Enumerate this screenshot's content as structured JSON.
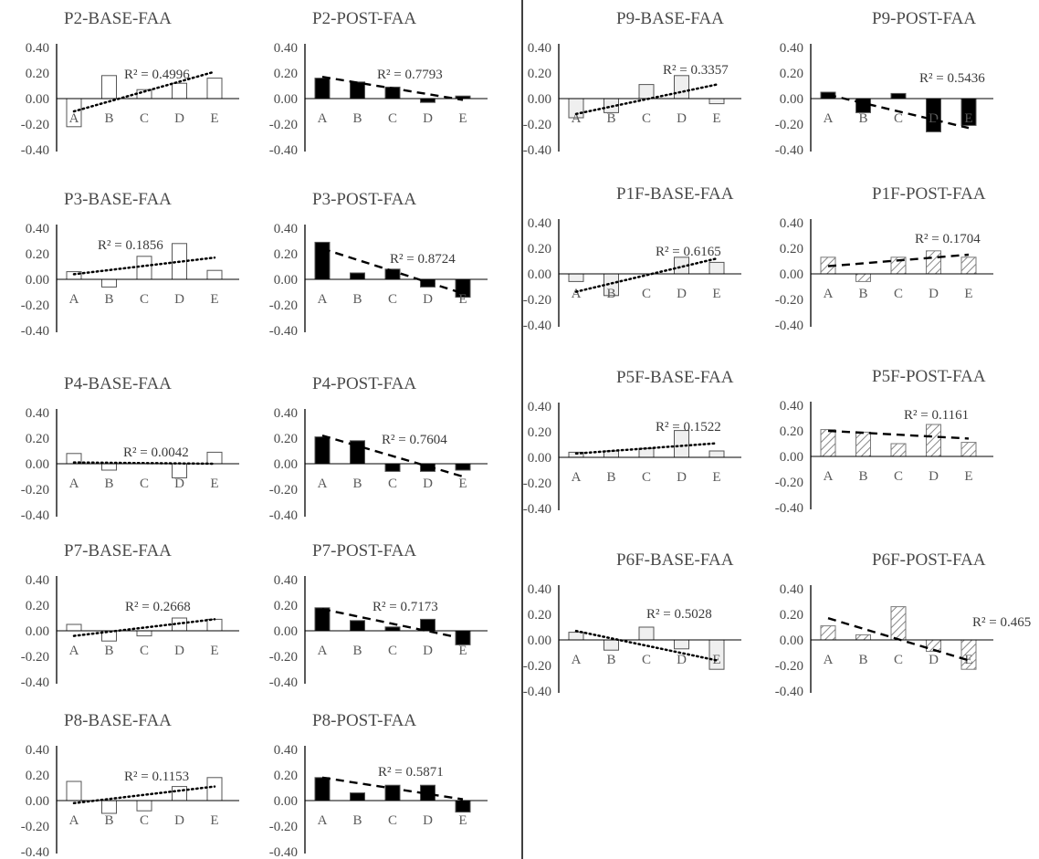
{
  "colors": {
    "axis": "#000000",
    "white_fill": "#ffffff",
    "light_fill": "#efefef",
    "dark_fill": "#000000",
    "hatch_line": "#888888",
    "text": "#4a4a4a",
    "divider": "#000000"
  },
  "chart_data": [
    {
      "type": "bar",
      "title": "P2-BASE-FAA",
      "categories": [
        "A",
        "B",
        "C",
        "D",
        "E"
      ],
      "values": [
        -0.22,
        0.18,
        0.07,
        0.12,
        0.16
      ],
      "ylim": [
        -0.4,
        0.4
      ],
      "yticks": [
        "0.40",
        "0.20",
        "0.00",
        "-0.20",
        "-0.40"
      ],
      "fill": "white",
      "trendline": "dotted",
      "trend": [
        -0.1,
        0.21
      ],
      "r2_label": "R² = 0.4996"
    },
    {
      "type": "bar",
      "title": "P2-POST-FAA",
      "categories": [
        "A",
        "B",
        "C",
        "D",
        "E"
      ],
      "values": [
        0.16,
        0.13,
        0.09,
        -0.03,
        0.02
      ],
      "ylim": [
        -0.4,
        0.4
      ],
      "yticks": [
        "0.40",
        "0.20",
        "0.00",
        "-0.20",
        "-0.40"
      ],
      "fill": "black",
      "trendline": "dashed",
      "trend": [
        0.17,
        -0.01
      ],
      "r2_label": "R² = 0.7793"
    },
    {
      "type": "bar",
      "title": "P3-BASE-FAA",
      "categories": [
        "A",
        "B",
        "C",
        "D",
        "E"
      ],
      "values": [
        0.06,
        -0.06,
        0.18,
        0.28,
        0.07
      ],
      "ylim": [
        -0.4,
        0.4
      ],
      "yticks": [
        "0.40",
        "0.20",
        "0.00",
        "-0.20",
        "-0.40"
      ],
      "fill": "white",
      "trendline": "dotted",
      "trend": [
        0.04,
        0.17
      ],
      "r2_label": "R² = 0.1856"
    },
    {
      "type": "bar",
      "title": "P3-POST-FAA",
      "categories": [
        "A",
        "B",
        "C",
        "D",
        "E"
      ],
      "values": [
        0.29,
        0.05,
        0.08,
        -0.06,
        -0.14
      ],
      "ylim": [
        -0.4,
        0.4
      ],
      "yticks": [
        "0.40",
        "0.20",
        "0.00",
        "-0.20",
        "-0.40"
      ],
      "fill": "black",
      "trendline": "dashed",
      "trend": [
        0.24,
        -0.11
      ],
      "r2_label": "R² = 0.8724"
    },
    {
      "type": "bar",
      "title": "P4-BASE-FAA",
      "categories": [
        "A",
        "B",
        "C",
        "D",
        "E"
      ],
      "values": [
        0.08,
        -0.05,
        0.0,
        -0.11,
        0.09
      ],
      "ylim": [
        -0.4,
        0.4
      ],
      "yticks": [
        "0.40",
        "0.20",
        "0.00",
        "-0.20",
        "-0.40"
      ],
      "fill": "white",
      "trendline": "dotted",
      "trend": [
        0.01,
        0.0
      ],
      "r2_label": "R² = 0.0042"
    },
    {
      "type": "bar",
      "title": "P4-POST-FAA",
      "categories": [
        "A",
        "B",
        "C",
        "D",
        "E"
      ],
      "values": [
        0.21,
        0.18,
        -0.06,
        -0.06,
        -0.05
      ],
      "ylim": [
        -0.4,
        0.4
      ],
      "yticks": [
        "0.40",
        "0.20",
        "0.00",
        "-0.20",
        "-0.40"
      ],
      "fill": "black",
      "trendline": "dashed",
      "trend": [
        0.22,
        -0.1
      ],
      "r2_label": "R² = 0.7604"
    },
    {
      "type": "bar",
      "title": "P7-BASE-FAA",
      "categories": [
        "A",
        "B",
        "C",
        "D",
        "E"
      ],
      "values": [
        0.05,
        -0.08,
        -0.04,
        0.1,
        0.09
      ],
      "ylim": [
        -0.4,
        0.4
      ],
      "yticks": [
        "0.40",
        "0.20",
        "0.00",
        "-0.20",
        "-0.40"
      ],
      "fill": "white",
      "trendline": "dotted",
      "trend": [
        -0.04,
        0.09
      ],
      "r2_label": "R² = 0.2668"
    },
    {
      "type": "bar",
      "title": "P7-POST-FAA",
      "categories": [
        "A",
        "B",
        "C",
        "D",
        "E"
      ],
      "values": [
        0.18,
        0.08,
        0.03,
        0.09,
        -0.11
      ],
      "ylim": [
        -0.4,
        0.4
      ],
      "yticks": [
        "0.40",
        "0.20",
        "0.00",
        "-0.20",
        "-0.40"
      ],
      "fill": "black",
      "trendline": "dashed",
      "trend": [
        0.17,
        -0.06
      ],
      "r2_label": "R² = 0.7173"
    },
    {
      "type": "bar",
      "title": "P8-BASE-FAA",
      "categories": [
        "A",
        "B",
        "C",
        "D",
        "E"
      ],
      "values": [
        0.15,
        -0.1,
        -0.08,
        0.11,
        0.18
      ],
      "ylim": [
        -0.4,
        0.4
      ],
      "yticks": [
        "0.40",
        "0.20",
        "0.00",
        "-0.20",
        "-0.40"
      ],
      "fill": "white",
      "trendline": "dotted",
      "trend": [
        -0.02,
        0.11
      ],
      "r2_label": "R² = 0.1153"
    },
    {
      "type": "bar",
      "title": "P8-POST-FAA",
      "categories": [
        "A",
        "B",
        "C",
        "D",
        "E"
      ],
      "values": [
        0.18,
        0.06,
        0.12,
        0.12,
        -0.09
      ],
      "ylim": [
        -0.4,
        0.4
      ],
      "yticks": [
        "0.40",
        "0.20",
        "0.00",
        "-0.20",
        "-0.40"
      ],
      "fill": "black",
      "trendline": "dashed",
      "trend": [
        0.18,
        0.01
      ],
      "r2_label": "R² = 0.5871"
    },
    {
      "type": "bar",
      "title": "P9-BASE-FAA",
      "categories": [
        "A",
        "B",
        "C",
        "D",
        "E"
      ],
      "values": [
        -0.15,
        -0.11,
        0.11,
        0.18,
        -0.04
      ],
      "ylim": [
        -0.4,
        0.4
      ],
      "yticks": [
        "0.40",
        "0.20",
        "0.00",
        "-0.20",
        "-0.40"
      ],
      "fill": "light",
      "trendline": "dotted",
      "trend": [
        -0.12,
        0.11
      ],
      "r2_label": "R² = 0.3357"
    },
    {
      "type": "bar",
      "title": "P9-POST-FAA",
      "categories": [
        "A",
        "B",
        "C",
        "D",
        "E"
      ],
      "values": [
        0.05,
        -0.11,
        0.04,
        -0.26,
        -0.21
      ],
      "ylim": [
        -0.4,
        0.4
      ],
      "yticks": [
        "0.40",
        "0.20",
        "0.00",
        "-0.20",
        "-0.40"
      ],
      "fill": "black",
      "trendline": "dashed",
      "trend": [
        0.03,
        -0.23
      ],
      "r2_label": "R² = 0.5436"
    },
    {
      "type": "bar",
      "title": "P1F-BASE-FAA",
      "categories": [
        "A",
        "B",
        "C",
        "D",
        "E"
      ],
      "values": [
        -0.06,
        -0.17,
        0.0,
        0.13,
        0.09
      ],
      "ylim": [
        -0.4,
        0.4
      ],
      "yticks": [
        "0.40",
        "0.20",
        "0.00",
        "-0.20",
        "-0.40"
      ],
      "fill": "light",
      "trendline": "dotted",
      "trend": [
        -0.14,
        0.12
      ],
      "r2_label": "R² = 0.6165"
    },
    {
      "type": "bar",
      "title": "P1F-POST-FAA",
      "categories": [
        "A",
        "B",
        "C",
        "D",
        "E"
      ],
      "values": [
        0.13,
        -0.06,
        0.13,
        0.18,
        0.13
      ],
      "ylim": [
        -0.4,
        0.4
      ],
      "yticks": [
        "0.40",
        "0.20",
        "0.00",
        "-0.20",
        "-0.40"
      ],
      "fill": "hatch",
      "trendline": "dashed",
      "trend": [
        0.06,
        0.15
      ],
      "r2_label": "R² = 0.1704"
    },
    {
      "type": "bar",
      "title": "P5F-BASE-FAA",
      "categories": [
        "A",
        "B",
        "C",
        "D",
        "E"
      ],
      "values": [
        0.04,
        0.05,
        0.07,
        0.21,
        0.05
      ],
      "ylim": [
        -0.4,
        0.4
      ],
      "yticks": [
        "0.40",
        "0.20",
        "0.00",
        "-0.20",
        "-0.40"
      ],
      "fill": "light",
      "trendline": "dotted",
      "trend": [
        0.03,
        0.11
      ],
      "r2_label": "R² = 0.1522"
    },
    {
      "type": "bar",
      "title": "P5F-POST-FAA",
      "categories": [
        "A",
        "B",
        "C",
        "D",
        "E"
      ],
      "values": [
        0.21,
        0.19,
        0.1,
        0.25,
        0.11
      ],
      "ylim": [
        -0.4,
        0.4
      ],
      "yticks": [
        "0.40",
        "0.20",
        "0.00",
        "-0.20",
        "-0.40"
      ],
      "fill": "hatch",
      "trendline": "dashed",
      "trend": [
        0.2,
        0.14
      ],
      "r2_label": "R² = 0.1161"
    },
    {
      "type": "bar",
      "title": "P6F-BASE-FAA",
      "categories": [
        "A",
        "B",
        "C",
        "D",
        "E"
      ],
      "values": [
        0.06,
        -0.08,
        0.1,
        -0.07,
        -0.23
      ],
      "ylim": [
        -0.4,
        0.4
      ],
      "yticks": [
        "0.40",
        "0.20",
        "0.00",
        "-0.20",
        "-0.40"
      ],
      "fill": "light",
      "trendline": "dotted",
      "trend": [
        0.07,
        -0.16
      ],
      "r2_label": "R² = 0.5028"
    },
    {
      "type": "bar",
      "title": "P6F-POST-FAA",
      "categories": [
        "A",
        "B",
        "C",
        "D",
        "E"
      ],
      "values": [
        0.11,
        0.04,
        0.26,
        -0.09,
        -0.23
      ],
      "ylim": [
        -0.4,
        0.4
      ],
      "yticks": [
        "0.40",
        "0.20",
        "0.00",
        "-0.20",
        "-0.40"
      ],
      "fill": "hatch",
      "trendline": "dashed",
      "trend": [
        0.17,
        -0.16
      ],
      "r2_label": "R² = 0.465"
    }
  ]
}
